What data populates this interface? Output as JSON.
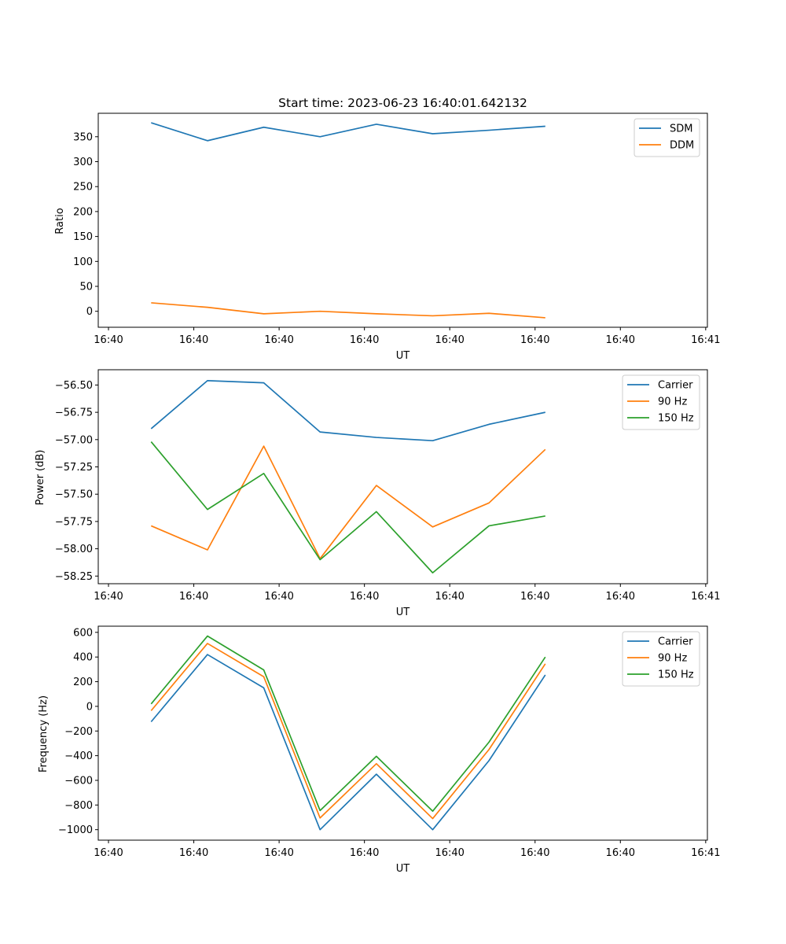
{
  "chart_data": [
    {
      "type": "line",
      "title": "Start time: 2023-06-23 16:40:01.642132",
      "xlabel": "UT",
      "ylabel": "Ratio",
      "x_ticks": [
        {
          "t": 0,
          "label": "16:40"
        },
        {
          "t": 5,
          "label": "16:40"
        },
        {
          "t": 10,
          "label": "16:40"
        },
        {
          "t": 15,
          "label": "16:40"
        },
        {
          "t": 20,
          "label": "16:40"
        },
        {
          "t": 25,
          "label": "16:40"
        },
        {
          "t": 30,
          "label": "16:40"
        },
        {
          "t": 35,
          "label": "16:41"
        }
      ],
      "xlim": [
        -0.6,
        35.1
      ],
      "x": [
        2.5,
        5.8,
        9.1,
        12.4,
        15.7,
        19.0,
        22.3,
        25.6
      ],
      "ylim": [
        -32,
        397
      ],
      "y_ticks": [
        0,
        50,
        100,
        150,
        200,
        250,
        300,
        350
      ],
      "legend": "upper right",
      "series": [
        {
          "name": "SDM",
          "color": "#1f77b4",
          "values": [
            378,
            342,
            369,
            350,
            375,
            356,
            363,
            371
          ]
        },
        {
          "name": "DDM",
          "color": "#ff7f0e",
          "values": [
            17,
            8,
            -5,
            0,
            -5,
            -9,
            -4,
            -13
          ]
        }
      ]
    },
    {
      "type": "line",
      "xlabel": "UT",
      "ylabel": "Power (dB)",
      "x_ticks": [
        {
          "t": 0,
          "label": "16:40"
        },
        {
          "t": 5,
          "label": "16:40"
        },
        {
          "t": 10,
          "label": "16:40"
        },
        {
          "t": 15,
          "label": "16:40"
        },
        {
          "t": 20,
          "label": "16:40"
        },
        {
          "t": 25,
          "label": "16:40"
        },
        {
          "t": 30,
          "label": "16:40"
        },
        {
          "t": 35,
          "label": "16:41"
        }
      ],
      "xlim": [
        -0.6,
        35.1
      ],
      "x": [
        2.5,
        5.8,
        9.1,
        12.4,
        15.7,
        19.0,
        22.3,
        25.6
      ],
      "ylim": [
        -58.32,
        -56.36
      ],
      "y_ticks": [
        -58.25,
        -58.0,
        -57.75,
        -57.5,
        -57.25,
        -57.0,
        -56.75,
        -56.5
      ],
      "y_tick_labels": [
        "−58.25",
        "−58.00",
        "−57.75",
        "−57.50",
        "−57.25",
        "−57.00",
        "−56.75",
        "−56.50"
      ],
      "legend": "upper right",
      "series": [
        {
          "name": "Carrier",
          "color": "#1f77b4",
          "values": [
            -56.9,
            -56.46,
            -56.48,
            -56.93,
            -56.98,
            -57.01,
            -56.86,
            -56.75
          ]
        },
        {
          "name": "90 Hz",
          "color": "#ff7f0e",
          "values": [
            -57.79,
            -58.01,
            -57.06,
            -58.09,
            -57.42,
            -57.8,
            -57.58,
            -57.09
          ]
        },
        {
          "name": "150 Hz",
          "color": "#2ca02c",
          "values": [
            -57.02,
            -57.64,
            -57.31,
            -58.1,
            -57.66,
            -58.22,
            -57.79,
            -57.7
          ]
        }
      ]
    },
    {
      "type": "line",
      "xlabel": "UT",
      "ylabel": "Frequency (Hz)",
      "x_ticks": [
        {
          "t": 0,
          "label": "16:40"
        },
        {
          "t": 5,
          "label": "16:40"
        },
        {
          "t": 10,
          "label": "16:40"
        },
        {
          "t": 15,
          "label": "16:40"
        },
        {
          "t": 20,
          "label": "16:40"
        },
        {
          "t": 25,
          "label": "16:40"
        },
        {
          "t": 30,
          "label": "16:40"
        },
        {
          "t": 35,
          "label": "16:41"
        }
      ],
      "xlim": [
        -0.6,
        35.1
      ],
      "x": [
        2.5,
        5.8,
        9.1,
        12.4,
        15.7,
        19.0,
        22.3,
        25.6
      ],
      "ylim": [
        -1085,
        650
      ],
      "y_ticks": [
        -1000,
        -800,
        -600,
        -400,
        -200,
        0,
        200,
        400,
        600
      ],
      "y_tick_labels": [
        "−1000",
        "−800",
        "−600",
        "−400",
        "−200",
        "0",
        "200",
        "400",
        "600"
      ],
      "legend": "upper right",
      "series": [
        {
          "name": "Carrier",
          "color": "#1f77b4",
          "values": [
            -125,
            420,
            150,
            -1000,
            -550,
            -1000,
            -440,
            255
          ]
        },
        {
          "name": "90 Hz",
          "color": "#ff7f0e",
          "values": [
            -35,
            510,
            240,
            -905,
            -465,
            -910,
            -350,
            345
          ]
        },
        {
          "name": "150 Hz",
          "color": "#2ca02c",
          "values": [
            20,
            570,
            295,
            -845,
            -405,
            -850,
            -290,
            400
          ]
        }
      ]
    }
  ]
}
